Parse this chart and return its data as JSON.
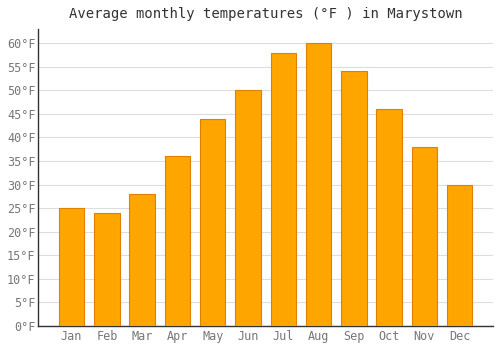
{
  "title": "Average monthly temperatures (°F ) in Marystown",
  "months": [
    "Jan",
    "Feb",
    "Mar",
    "Apr",
    "May",
    "Jun",
    "Jul",
    "Aug",
    "Sep",
    "Oct",
    "Nov",
    "Dec"
  ],
  "values": [
    25,
    24,
    28,
    36,
    44,
    50,
    58,
    60,
    54,
    46,
    38,
    30
  ],
  "bar_color_main": "#FFA500",
  "bar_color_edge": "#E08000",
  "background_color": "#FFFFFF",
  "plot_bg_color": "#FFFFFF",
  "grid_color": "#DDDDDD",
  "ylim": [
    0,
    63
  ],
  "yticks": [
    0,
    5,
    10,
    15,
    20,
    25,
    30,
    35,
    40,
    45,
    50,
    55,
    60
  ],
  "title_fontsize": 10,
  "tick_fontsize": 8.5,
  "tick_color": "#777777",
  "spine_color": "#333333"
}
